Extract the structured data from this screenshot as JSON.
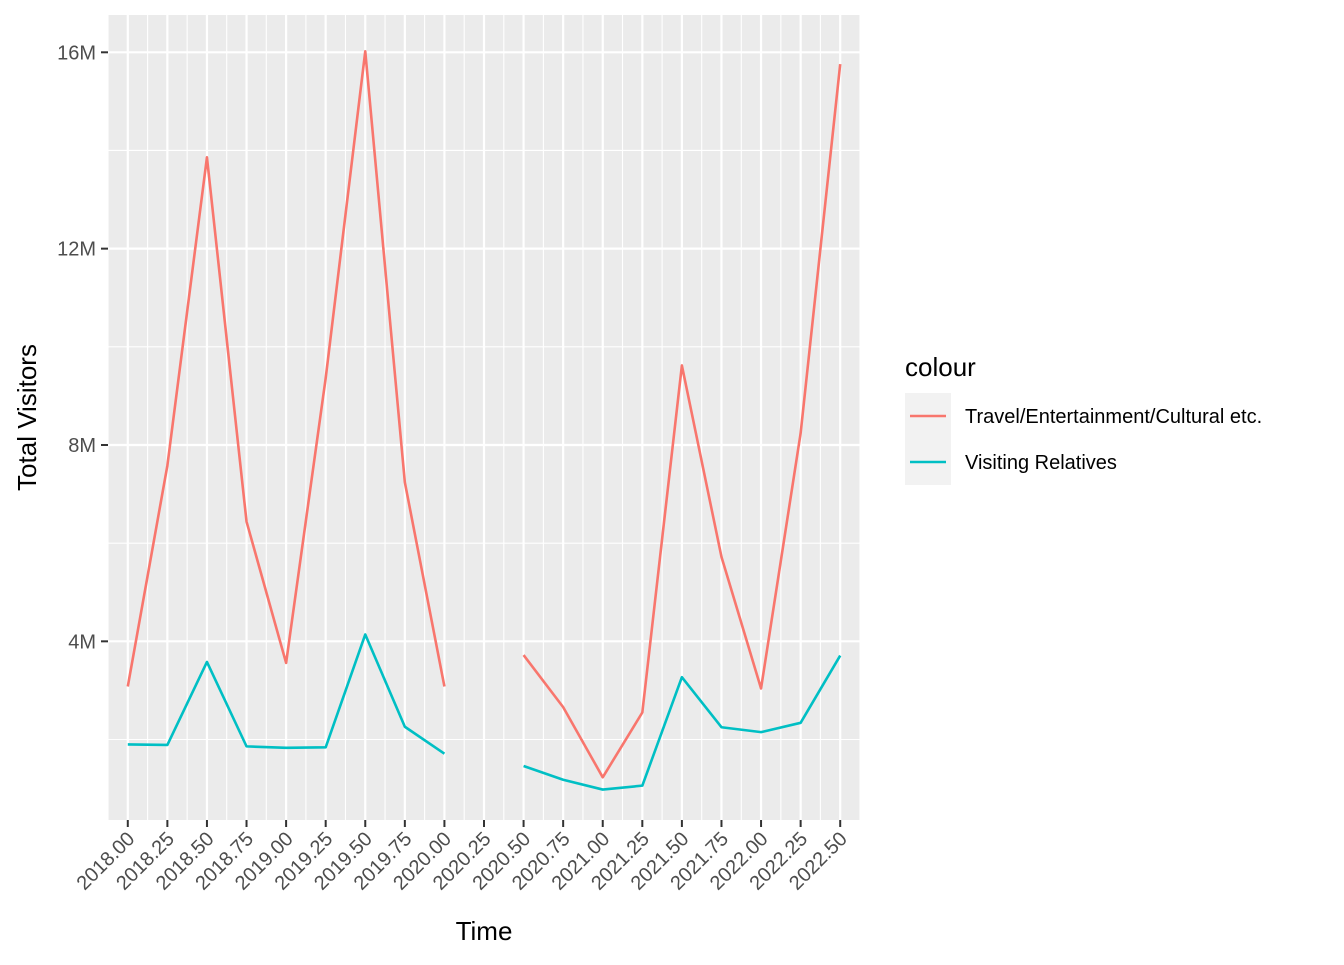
{
  "chart_data": {
    "type": "line",
    "title": "",
    "xlabel": "Time",
    "ylabel": "Total Visitors",
    "x": [
      2018.0,
      2018.25,
      2018.5,
      2018.75,
      2019.0,
      2019.25,
      2019.5,
      2019.75,
      2020.0,
      2020.25,
      2020.5,
      2020.75,
      2021.0,
      2021.25,
      2021.5,
      2021.75,
      2022.0,
      2022.25,
      2022.5
    ],
    "x_tick_labels": [
      "2018.00",
      "2018.25",
      "2018.50",
      "2018.75",
      "2019.00",
      "2019.25",
      "2019.50",
      "2019.75",
      "2020.00",
      "2020.25",
      "2020.50",
      "2020.75",
      "2021.00",
      "2021.25",
      "2021.50",
      "2021.75",
      "2022.00",
      "2022.25",
      "2022.50"
    ],
    "y_ticks": [
      4000000,
      8000000,
      12000000,
      16000000
    ],
    "y_tick_labels": [
      "4M",
      "8M",
      "12M",
      "16M"
    ],
    "xlim": [
      2017.875,
      2022.625
    ],
    "ylim": [
      360000,
      16760000
    ],
    "grid": true,
    "legend": {
      "title": "colour",
      "position": "right"
    },
    "series": [
      {
        "name": "Travel/Entertainment/Cultural etc.",
        "color": "#F8766D",
        "values": [
          3080000,
          7580000,
          13860000,
          6440000,
          3560000,
          9360000,
          16020000,
          7240000,
          3080000,
          null,
          3720000,
          2660000,
          1230000,
          2550000,
          9620000,
          5720000,
          3040000,
          8240000,
          15760000
        ]
      },
      {
        "name": "Visiting Relatives",
        "color": "#00BFC4",
        "values": [
          1900000,
          1890000,
          3580000,
          1860000,
          1830000,
          1840000,
          4140000,
          2260000,
          1710000,
          null,
          1460000,
          1180000,
          980000,
          1060000,
          3270000,
          2250000,
          2150000,
          2340000,
          3710000
        ]
      }
    ]
  }
}
